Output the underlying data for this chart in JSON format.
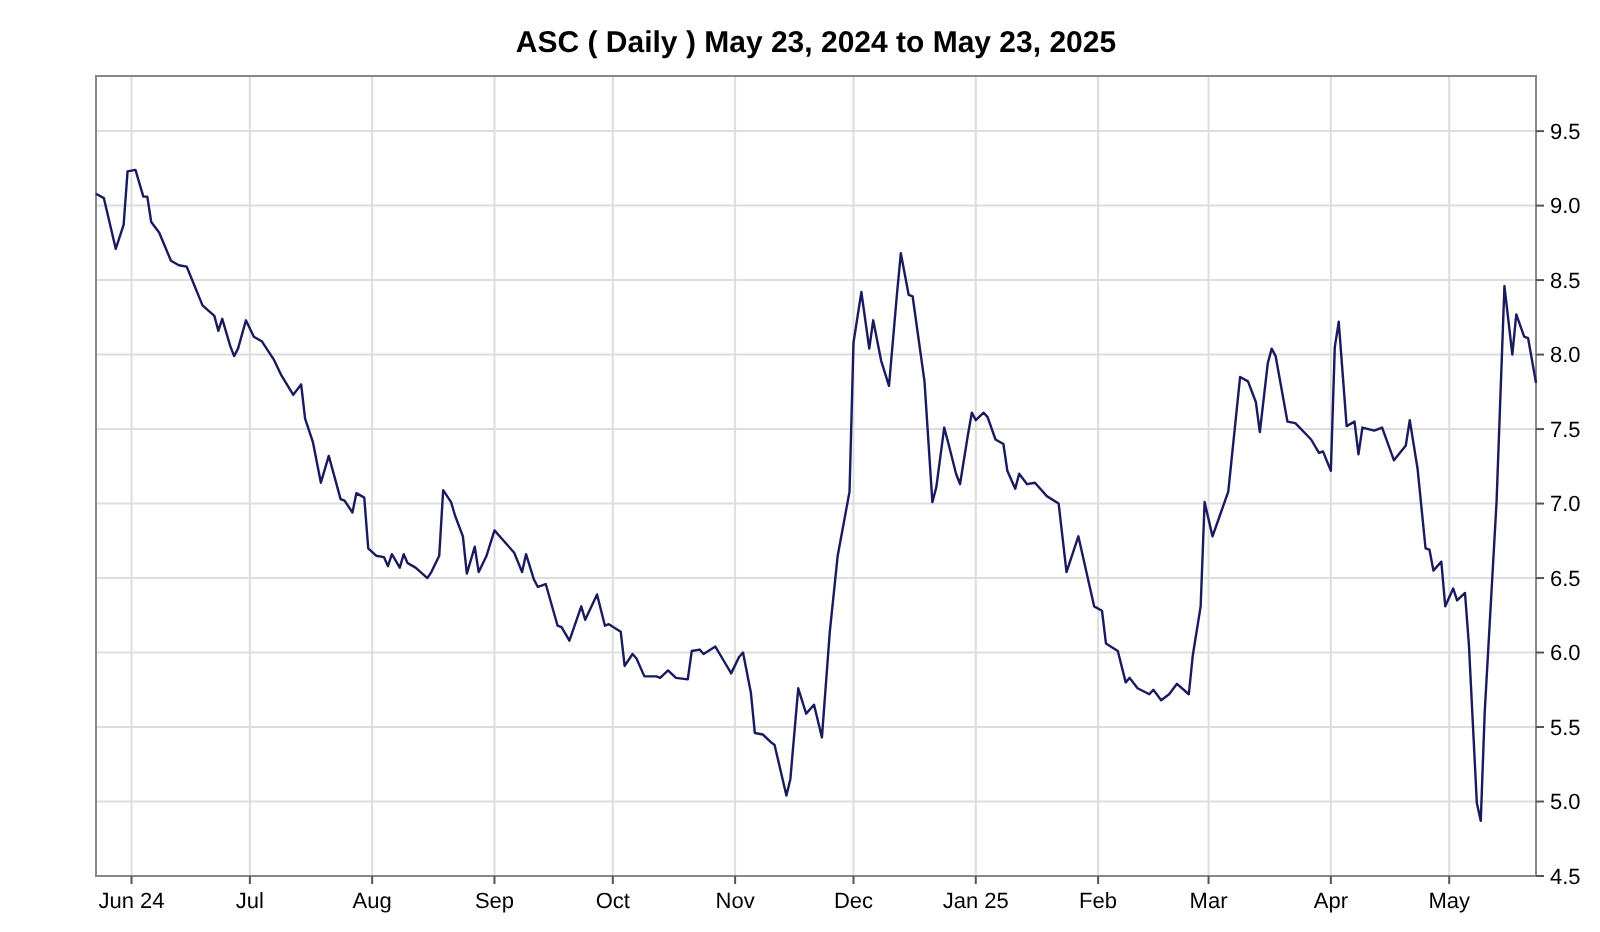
{
  "chart_data": {
    "type": "line",
    "title": "ASC ( Daily ) May 23, 2024 to May 23, 2025",
    "x": [
      "2024-05-23",
      "2024-05-25",
      "2024-05-28",
      "2024-05-30",
      "2024-05-31",
      "2024-06-02",
      "2024-06-04",
      "2024-06-05",
      "2024-06-06",
      "2024-06-08",
      "2024-06-11",
      "2024-06-13",
      "2024-06-15",
      "2024-06-19",
      "2024-06-22",
      "2024-06-23",
      "2024-06-24",
      "2024-06-26",
      "2024-06-27",
      "2024-06-28",
      "2024-06-30",
      "2024-07-02",
      "2024-07-04",
      "2024-07-07",
      "2024-07-09",
      "2024-07-12",
      "2024-07-14",
      "2024-07-15",
      "2024-07-17",
      "2024-07-19",
      "2024-07-21",
      "2024-07-24",
      "2024-07-25",
      "2024-07-27",
      "2024-07-28",
      "2024-07-30",
      "2024-07-31",
      "2024-08-02",
      "2024-08-04",
      "2024-08-05",
      "2024-08-06",
      "2024-08-08",
      "2024-08-09",
      "2024-08-10",
      "2024-08-12",
      "2024-08-15",
      "2024-08-16",
      "2024-08-18",
      "2024-08-19",
      "2024-08-21",
      "2024-08-22",
      "2024-08-24",
      "2024-08-25",
      "2024-08-27",
      "2024-08-28",
      "2024-08-30",
      "2024-09-01",
      "2024-09-04",
      "2024-09-06",
      "2024-09-08",
      "2024-09-09",
      "2024-09-11",
      "2024-09-12",
      "2024-09-14",
      "2024-09-17",
      "2024-09-18",
      "2024-09-20",
      "2024-09-23",
      "2024-09-24",
      "2024-09-27",
      "2024-09-29",
      "2024-09-30",
      "2024-10-03",
      "2024-10-04",
      "2024-10-06",
      "2024-10-07",
      "2024-10-09",
      "2024-10-12",
      "2024-10-13",
      "2024-10-15",
      "2024-10-17",
      "2024-10-20",
      "2024-10-21",
      "2024-10-23",
      "2024-10-24",
      "2024-10-27",
      "2024-10-29",
      "2024-10-31",
      "2024-11-02",
      "2024-11-03",
      "2024-11-05",
      "2024-11-06",
      "2024-11-08",
      "2024-11-10",
      "2024-11-11",
      "2024-11-14",
      "2024-11-15",
      "2024-11-17",
      "2024-11-19",
      "2024-11-21",
      "2024-11-23",
      "2024-11-25",
      "2024-11-27",
      "2024-11-30",
      "2024-12-01",
      "2024-12-03",
      "2024-12-05",
      "2024-12-06",
      "2024-12-08",
      "2024-12-10",
      "2024-12-12",
      "2024-12-13",
      "2024-12-15",
      "2024-12-16",
      "2024-12-19",
      "2024-12-21",
      "2024-12-22",
      "2024-12-24",
      "2024-12-25",
      "2024-12-27",
      "2024-12-28",
      "2024-12-30",
      "2024-12-31",
      "2025-01-01",
      "2025-01-03",
      "2025-01-04",
      "2025-01-06",
      "2025-01-08",
      "2025-01-09",
      "2025-01-11",
      "2025-01-12",
      "2025-01-14",
      "2025-01-16",
      "2025-01-19",
      "2025-01-22",
      "2025-01-24",
      "2025-01-27",
      "2025-01-31",
      "2025-02-02",
      "2025-02-03",
      "2025-02-06",
      "2025-02-08",
      "2025-02-09",
      "2025-02-11",
      "2025-02-14",
      "2025-02-15",
      "2025-02-17",
      "2025-02-19",
      "2025-02-21",
      "2025-02-24",
      "2025-02-25",
      "2025-02-27",
      "2025-02-28",
      "2025-03-02",
      "2025-03-04",
      "2025-03-06",
      "2025-03-09",
      "2025-03-11",
      "2025-03-13",
      "2025-03-14",
      "2025-03-16",
      "2025-03-17",
      "2025-03-18",
      "2025-03-21",
      "2025-03-23",
      "2025-03-27",
      "2025-03-29",
      "2025-03-30",
      "2025-04-01",
      "2025-04-02",
      "2025-04-03",
      "2025-04-05",
      "2025-04-07",
      "2025-04-08",
      "2025-04-09",
      "2025-04-12",
      "2025-04-14",
      "2025-04-17",
      "2025-04-20",
      "2025-04-21",
      "2025-04-23",
      "2025-04-25",
      "2025-04-26",
      "2025-04-27",
      "2025-04-29",
      "2025-04-30",
      "2025-05-02",
      "2025-05-03",
      "2025-05-05",
      "2025-05-06",
      "2025-05-08",
      "2025-05-09",
      "2025-05-10",
      "2025-05-13",
      "2025-05-15",
      "2025-05-17",
      "2025-05-18",
      "2025-05-20",
      "2025-05-21",
      "2025-05-23"
    ],
    "series": [
      {
        "color": "#1a1a5e",
        "values": [
          9.08,
          9.05,
          8.71,
          8.87,
          9.23,
          9.24,
          9.06,
          9.06,
          8.89,
          8.82,
          8.63,
          8.6,
          8.59,
          8.33,
          8.26,
          8.16,
          8.24,
          8.06,
          7.99,
          8.04,
          8.23,
          8.12,
          8.09,
          7.97,
          7.86,
          7.73,
          7.8,
          7.57,
          7.41,
          7.14,
          7.32,
          7.03,
          7.02,
          6.94,
          7.07,
          7.04,
          6.7,
          6.65,
          6.64,
          6.58,
          6.66,
          6.57,
          6.66,
          6.6,
          6.57,
          6.5,
          6.54,
          6.65,
          7.09,
          7.01,
          6.92,
          6.78,
          6.53,
          6.71,
          6.54,
          6.65,
          6.82,
          6.73,
          6.67,
          6.54,
          6.66,
          6.49,
          6.44,
          6.46,
          6.18,
          6.17,
          6.08,
          6.31,
          6.22,
          6.39,
          6.18,
          6.19,
          6.14,
          5.91,
          5.99,
          5.96,
          5.84,
          5.84,
          5.83,
          5.88,
          5.83,
          5.82,
          6.01,
          6.02,
          5.99,
          6.04,
          5.95,
          5.86,
          5.97,
          6.0,
          5.73,
          5.46,
          5.45,
          5.4,
          5.38,
          5.04,
          5.15,
          5.76,
          5.59,
          5.65,
          5.43,
          6.14,
          6.65,
          7.08,
          8.08,
          8.42,
          8.04,
          8.23,
          7.96,
          7.79,
          8.4,
          8.68,
          8.4,
          8.39,
          7.82,
          7.01,
          7.11,
          7.51,
          7.41,
          7.2,
          7.13,
          7.46,
          7.61,
          7.56,
          7.61,
          7.58,
          7.43,
          7.4,
          7.22,
          7.1,
          7.2,
          7.13,
          7.14,
          7.05,
          7.0,
          6.54,
          6.78,
          6.31,
          6.28,
          6.06,
          6.01,
          5.8,
          5.83,
          5.76,
          5.72,
          5.75,
          5.68,
          5.72,
          5.79,
          5.72,
          5.98,
          6.31,
          7.01,
          6.78,
          6.93,
          7.08,
          7.85,
          7.82,
          7.68,
          7.48,
          7.94,
          8.04,
          7.99,
          7.55,
          7.54,
          7.43,
          7.34,
          7.35,
          7.22,
          8.05,
          8.22,
          7.52,
          7.55,
          7.33,
          7.51,
          7.49,
          7.51,
          7.29,
          7.39,
          7.56,
          7.23,
          6.7,
          6.69,
          6.55,
          6.61,
          6.31,
          6.43,
          6.35,
          6.4,
          6.05,
          4.99,
          4.87,
          5.6,
          7.01,
          8.46,
          8.0,
          8.27,
          8.12,
          8.11,
          7.81
        ]
      }
    ],
    "xlim": [
      "2024-05-23",
      "2025-05-23"
    ],
    "xticks": [
      {
        "value": "2024-06-01",
        "label": "Jun 24"
      },
      {
        "value": "2024-07-01",
        "label": "Jul"
      },
      {
        "value": "2024-08-01",
        "label": "Aug"
      },
      {
        "value": "2024-09-01",
        "label": "Sep"
      },
      {
        "value": "2024-10-01",
        "label": "Oct"
      },
      {
        "value": "2024-11-01",
        "label": "Nov"
      },
      {
        "value": "2024-12-01",
        "label": "Dec"
      },
      {
        "value": "2025-01-01",
        "label": "Jan 25"
      },
      {
        "value": "2025-02-01",
        "label": "Feb"
      },
      {
        "value": "2025-03-01",
        "label": "Mar"
      },
      {
        "value": "2025-04-01",
        "label": "Apr"
      },
      {
        "value": "2025-05-01",
        "label": "May"
      }
    ],
    "ylim": [
      4.5,
      9.87
    ],
    "yticks": [
      4.5,
      {
        "value": 5,
        "label": "5.0"
      },
      5.5,
      {
        "value": 6,
        "label": "6.0"
      },
      6.5,
      {
        "value": 7,
        "label": "7.0"
      },
      7.5,
      {
        "value": 8,
        "label": "8.0"
      },
      8.5,
      {
        "value": 9,
        "label": "9.0"
      },
      9.5
    ],
    "grid": true,
    "marker": "none",
    "line_style": "solid"
  }
}
